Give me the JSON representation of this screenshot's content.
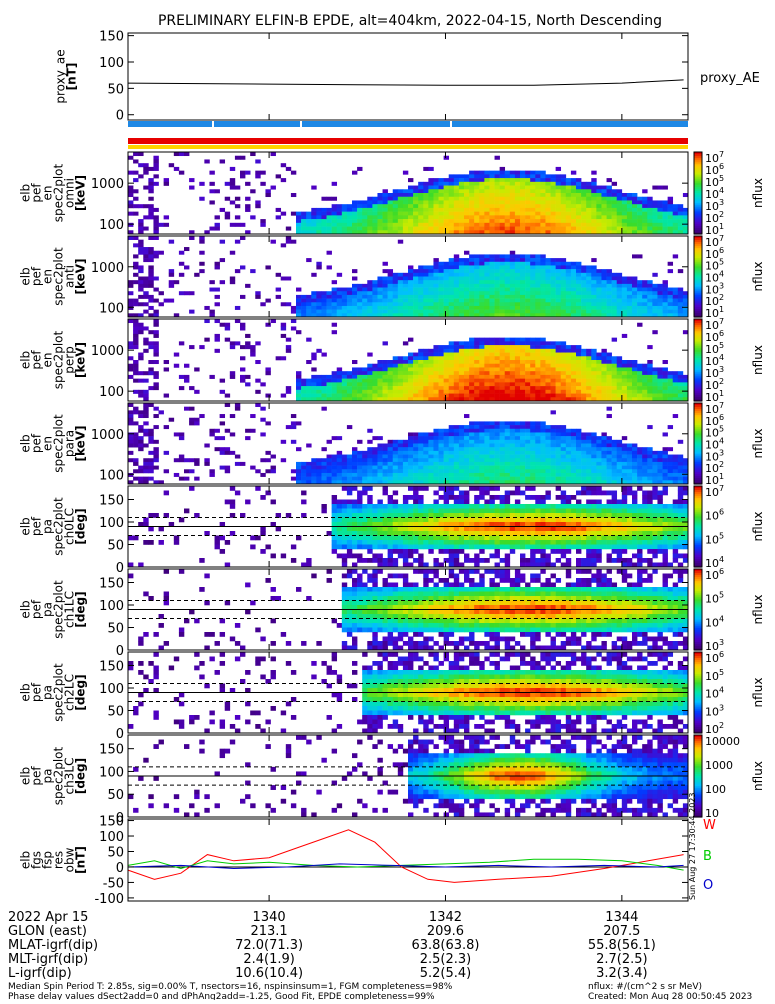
{
  "title": "PRELIMINARY ELFIN-B EPDE, alt=404km, 2022-04-15, North Descending",
  "colors": {
    "red": "#ff0000",
    "blue": "#0000cc",
    "green": "#00cc00",
    "bar_blue": "#1e88e5",
    "bar_red": "#e60000",
    "bar_yellow": "#ffd200"
  },
  "chart_data": [
    {
      "type": "line",
      "name": "proxy_ae",
      "ylabel": [
        "proxy_ae",
        "[nT]"
      ],
      "yticks": [
        "150",
        "100",
        "50",
        "0"
      ],
      "ylim": [
        -10,
        155
      ],
      "legend": [
        "proxy_AE"
      ],
      "series": [
        {
          "name": "proxy_AE",
          "x": [
            1338.4,
            1340.0,
            1341.0,
            1342.0,
            1343.0,
            1344.0,
            1344.7
          ],
          "values": [
            60,
            58,
            57,
            56,
            56,
            60,
            66
          ]
        }
      ]
    },
    {
      "type": "heatmap",
      "name": "elb_pef_en_spec2plot_omni",
      "ylabel": [
        "elb",
        "pef",
        "en",
        "spec2plot",
        "omni",
        "[keV]"
      ],
      "yticks": [
        "1000",
        "100"
      ],
      "yscale": "log",
      "zlabel": "nflux",
      "zticks": [
        "10^7",
        "10^6",
        "10^5",
        "10^4",
        "10^3",
        "10^2",
        "10^1"
      ]
    },
    {
      "type": "heatmap",
      "name": "elb_pef_en_spec2plot_anti",
      "ylabel": [
        "elb",
        "pef",
        "en",
        "spec2plot",
        "anti",
        "[keV]"
      ],
      "yticks": [
        "1000",
        "100"
      ],
      "yscale": "log",
      "zlabel": "nflux",
      "zticks": [
        "10^7",
        "10^6",
        "10^5",
        "10^4",
        "10^3",
        "10^2",
        "10^1"
      ]
    },
    {
      "type": "heatmap",
      "name": "elb_pef_en_spec2plot_perp",
      "ylabel": [
        "elb",
        "pef",
        "en",
        "spec2plot",
        "perp",
        "[keV]"
      ],
      "yticks": [
        "1000",
        "100"
      ],
      "yscale": "log",
      "zlabel": "nflux",
      "zticks": [
        "10^7",
        "10^6",
        "10^5",
        "10^4",
        "10^3",
        "10^2",
        "10^1"
      ]
    },
    {
      "type": "heatmap",
      "name": "elb_pef_en_spec2plot_para",
      "ylabel": [
        "elb",
        "pef",
        "en",
        "spec2plot",
        "para",
        "[keV]"
      ],
      "yticks": [
        "1000",
        "100"
      ],
      "yscale": "log",
      "zlabel": "nflux",
      "zticks": [
        "10^7",
        "10^6",
        "10^5",
        "10^4",
        "10^3",
        "10^2",
        "10^1"
      ]
    },
    {
      "type": "heatmap",
      "name": "elb_pef_pa_spec2plot_ch0LC",
      "ylabel": [
        "elb",
        "pef",
        "pa",
        "spec2plot",
        "ch0LC",
        "[deg]"
      ],
      "yticks": [
        "150",
        "100",
        "50",
        "0"
      ],
      "zlabel": "nflux",
      "zticks": [
        "10^7",
        "10^6",
        "10^5",
        "10^4"
      ]
    },
    {
      "type": "heatmap",
      "name": "elb_pef_pa_spec2plot_ch1LC",
      "ylabel": [
        "elb",
        "pef",
        "pa",
        "spec2plot",
        "ch1LC",
        "[deg]"
      ],
      "yticks": [
        "150",
        "100",
        "50",
        "0"
      ],
      "zlabel": "nflux",
      "zticks": [
        "10^6",
        "10^5",
        "10^4",
        "10^3"
      ]
    },
    {
      "type": "heatmap",
      "name": "elb_pef_pa_spec2plot_ch2LC",
      "ylabel": [
        "elb",
        "pef",
        "pa",
        "spec2plot",
        "ch2LC",
        "[deg]"
      ],
      "yticks": [
        "150",
        "100",
        "50",
        "0"
      ],
      "zlabel": "nflux",
      "zticks": [
        "10^6",
        "10^5",
        "10^4",
        "10^3",
        "10^2"
      ]
    },
    {
      "type": "heatmap",
      "name": "elb_pef_pa_spec2plot_ch3LC",
      "ylabel": [
        "elb",
        "pef",
        "pa",
        "spec2plot",
        "ch3LC",
        "[deg]"
      ],
      "yticks": [
        "150",
        "100",
        "50",
        "0"
      ],
      "zlabel": "nflux",
      "zticks": [
        "10000",
        "1000",
        "100",
        "10"
      ]
    },
    {
      "type": "line",
      "name": "elb_fgs_fsp_res_obw",
      "ylabel": [
        "elb",
        "fgs",
        "fsp",
        "res",
        "obw",
        "[nT]"
      ],
      "yticks": [
        "150",
        "100",
        "50",
        "0",
        "-50",
        "-100"
      ],
      "ylim": [
        -110,
        155
      ],
      "legend": [
        "W",
        "B",
        "O"
      ],
      "series": [
        {
          "name": "W",
          "x": [
            1338.4,
            1338.7,
            1339.0,
            1339.3,
            1339.6,
            1340.0,
            1340.3,
            1340.6,
            1340.9,
            1341.2,
            1341.5,
            1341.8,
            1342.1,
            1342.6,
            1343.2,
            1343.8,
            1344.3,
            1344.7
          ],
          "values": [
            -10,
            -40,
            -20,
            40,
            20,
            30,
            60,
            90,
            120,
            80,
            0,
            -40,
            -50,
            -40,
            -30,
            -5,
            20,
            40
          ]
        },
        {
          "name": "B",
          "x": [
            1338.4,
            1338.7,
            1339.0,
            1339.3,
            1339.6,
            1340.0,
            1340.5,
            1341.0,
            1341.5,
            1342.0,
            1342.5,
            1343.0,
            1343.5,
            1344.0,
            1344.4,
            1344.7
          ],
          "values": [
            5,
            20,
            -5,
            20,
            10,
            15,
            5,
            0,
            5,
            10,
            15,
            25,
            25,
            20,
            5,
            -10
          ]
        },
        {
          "name": "O",
          "x": [
            1338.4,
            1339.0,
            1339.6,
            1340.2,
            1340.8,
            1341.4,
            1342.0,
            1342.6,
            1343.2,
            1343.8,
            1344.4,
            1344.7
          ],
          "values": [
            0,
            5,
            -5,
            0,
            10,
            5,
            0,
            5,
            0,
            5,
            0,
            5
          ]
        }
      ]
    }
  ],
  "x_axis": {
    "ticks": [
      "1340",
      "1342",
      "1344"
    ],
    "tick_minutes": [
      1340.0,
      1342.0,
      1344.0
    ],
    "range": [
      1338.4,
      1344.75
    ]
  },
  "footer_table": {
    "rows": [
      {
        "label": "2022 Apr 15",
        "values": [
          "1340",
          "1342",
          "1344"
        ]
      },
      {
        "label": "GLON (east)",
        "values": [
          "213.1",
          "209.6",
          "207.5"
        ]
      },
      {
        "label": "MLAT-igrf(dip)",
        "values": [
          "72.0(71.3)",
          "63.8(63.8)",
          "55.8(56.1)"
        ]
      },
      {
        "label": "MLT-igrf(dip)",
        "values": [
          "2.4(1.9)",
          "2.5(2.3)",
          "2.7(2.5)"
        ]
      },
      {
        "label": "L-igrf(dip)",
        "values": [
          "10.6(10.4)",
          "5.2(5.4)",
          "3.2(3.4)"
        ]
      }
    ]
  },
  "footnotes": {
    "line1": "Median Spin Period T: 2.85s, sig=0.00% T, nsectors=16, nspinsinsum=1, FGM completeness=98%",
    "line2": "Phase delay values dSect2add=0 and dPhAng2add=-1.25, Good Fit, EPDE completeness=99%",
    "right1": "nflux: #/(cm^2 s sr MeV)",
    "right2": "Created: Mon Aug 28 00:50:45 2023"
  },
  "side_note": "Sun Aug 27 17:30:44 2023"
}
